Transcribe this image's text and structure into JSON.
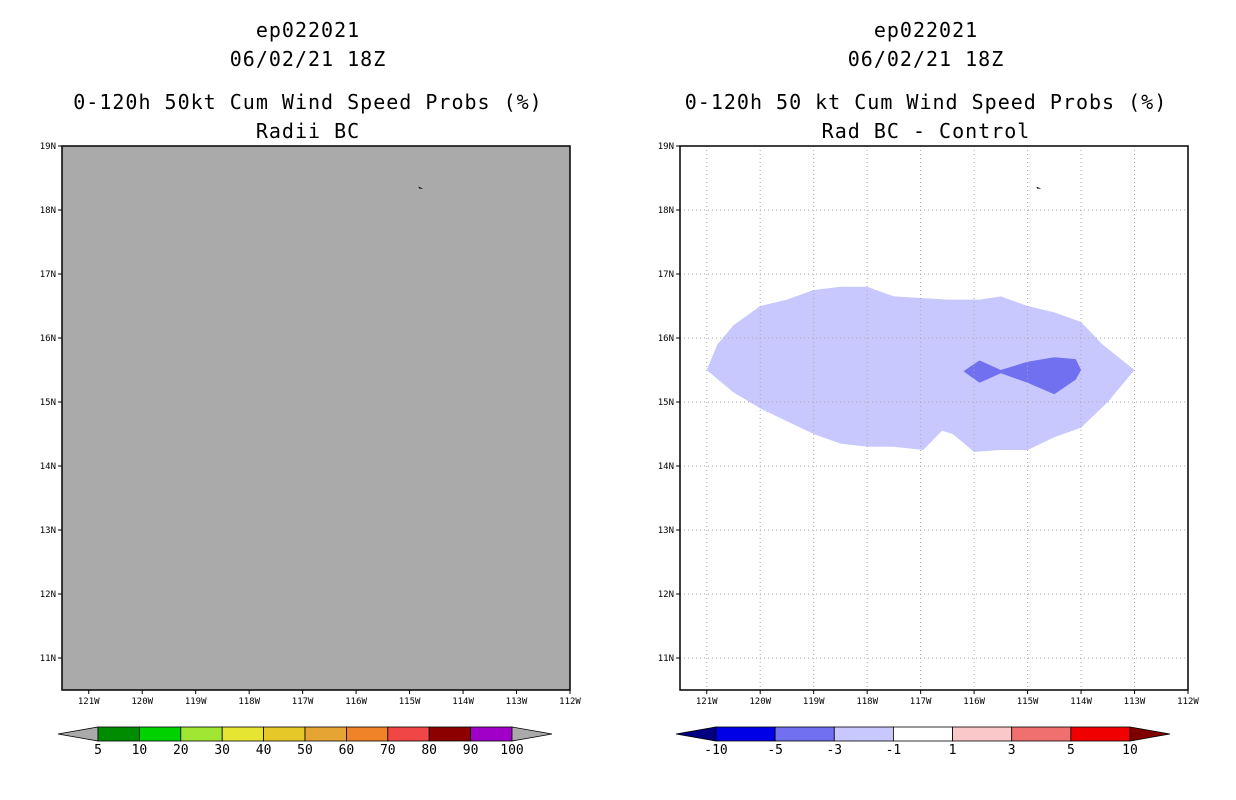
{
  "chart_data": [
    {
      "type": "heatmap",
      "panel": "left",
      "title_lines": [
        "ep022021",
        "06/02/21 18Z",
        "0-120h 50kt Cum Wind Speed Probs (%)",
        "Radii BC"
      ],
      "x_ticks": [
        "121W",
        "120W",
        "119W",
        "118W",
        "117W",
        "116W",
        "115W",
        "114W",
        "113W",
        "112W"
      ],
      "y_ticks": [
        "19N",
        "18N",
        "17N",
        "16N",
        "15N",
        "14N",
        "13N",
        "12N",
        "11N"
      ],
      "xlim": [
        -121.5,
        -112.0
      ],
      "ylim": [
        10.5,
        19.0
      ],
      "field": "uniform grey (no probability above 5%)",
      "field_color": "#aaaaaa",
      "storm_marker": {
        "lon": -114.8,
        "lat": 18.35
      },
      "colorbar": {
        "labels": [
          "5",
          "10",
          "20",
          "30",
          "40",
          "50",
          "60",
          "70",
          "80",
          "90",
          "100"
        ],
        "colors": [
          "#008c00",
          "#00d200",
          "#a0e632",
          "#e6e632",
          "#e6c828",
          "#e6a532",
          "#f08228",
          "#f04646",
          "#8c0000",
          "#a000c8"
        ],
        "end_color": "#aaaaaa"
      }
    },
    {
      "type": "heatmap",
      "panel": "right",
      "title_lines": [
        "ep022021",
        "06/02/21 18Z",
        "0-120h 50 kt Cum Wind Speed Probs (%)",
        "Rad BC - Control"
      ],
      "x_ticks": [
        "121W",
        "120W",
        "119W",
        "118W",
        "117W",
        "116W",
        "115W",
        "114W",
        "113W",
        "112W"
      ],
      "y_ticks": [
        "19N",
        "18N",
        "17N",
        "16N",
        "15N",
        "14N",
        "13N",
        "12N",
        "11N"
      ],
      "xlim": [
        -121.5,
        -112.0
      ],
      "ylim": [
        10.5,
        19.0
      ],
      "grid": true,
      "storm_marker": {
        "lon": -114.8,
        "lat": 18.35
      },
      "contours": [
        {
          "range": "-3 to -1",
          "color": "#c8c8ff",
          "points": [
            [
              -121.0,
              15.5
            ],
            [
              -120.8,
              15.9
            ],
            [
              -120.5,
              16.2
            ],
            [
              -120.0,
              16.5
            ],
            [
              -119.5,
              16.6
            ],
            [
              -119.0,
              16.75
            ],
            [
              -118.5,
              16.8
            ],
            [
              -118.0,
              16.8
            ],
            [
              -117.5,
              16.65
            ],
            [
              -116.5,
              16.6
            ],
            [
              -115.9,
              16.6
            ],
            [
              -115.5,
              16.65
            ],
            [
              -115.0,
              16.5
            ],
            [
              -114.5,
              16.4
            ],
            [
              -114.0,
              16.25
            ],
            [
              -113.6,
              15.9
            ],
            [
              -113.0,
              15.5
            ],
            [
              -113.5,
              15.0
            ],
            [
              -114.0,
              14.6
            ],
            [
              -114.5,
              14.45
            ],
            [
              -115.0,
              14.25
            ],
            [
              -115.5,
              14.25
            ],
            [
              -116.0,
              14.22
            ],
            [
              -116.4,
              14.5
            ],
            [
              -116.6,
              14.55
            ],
            [
              -116.95,
              14.25
            ],
            [
              -117.5,
              14.3
            ],
            [
              -118.0,
              14.3
            ],
            [
              -118.5,
              14.35
            ],
            [
              -119.0,
              14.5
            ],
            [
              -119.5,
              14.7
            ],
            [
              -120.0,
              14.9
            ],
            [
              -120.5,
              15.15
            ],
            [
              -121.0,
              15.5
            ]
          ]
        },
        {
          "range": "-5 to -3",
          "color": "#7070f0",
          "points": [
            [
              -116.2,
              15.48
            ],
            [
              -115.9,
              15.65
            ],
            [
              -115.5,
              15.5
            ],
            [
              -115.0,
              15.63
            ],
            [
              -114.5,
              15.7
            ],
            [
              -114.1,
              15.67
            ],
            [
              -114.0,
              15.5
            ],
            [
              -114.1,
              15.35
            ],
            [
              -114.5,
              15.12
            ],
            [
              -115.0,
              15.3
            ],
            [
              -115.5,
              15.45
            ],
            [
              -115.9,
              15.3
            ],
            [
              -116.2,
              15.48
            ]
          ]
        }
      ],
      "colorbar": {
        "labels": [
          "-10",
          "-5",
          "-3",
          "-1",
          "1",
          "3",
          "5",
          "10"
        ],
        "colors": [
          "#0000e6",
          "#7070f0",
          "#c8c8ff",
          "#ffffff",
          "#fac8c8",
          "#f07070",
          "#f00000"
        ],
        "end_low_color": "#000080",
        "end_high_color": "#800000"
      }
    }
  ]
}
